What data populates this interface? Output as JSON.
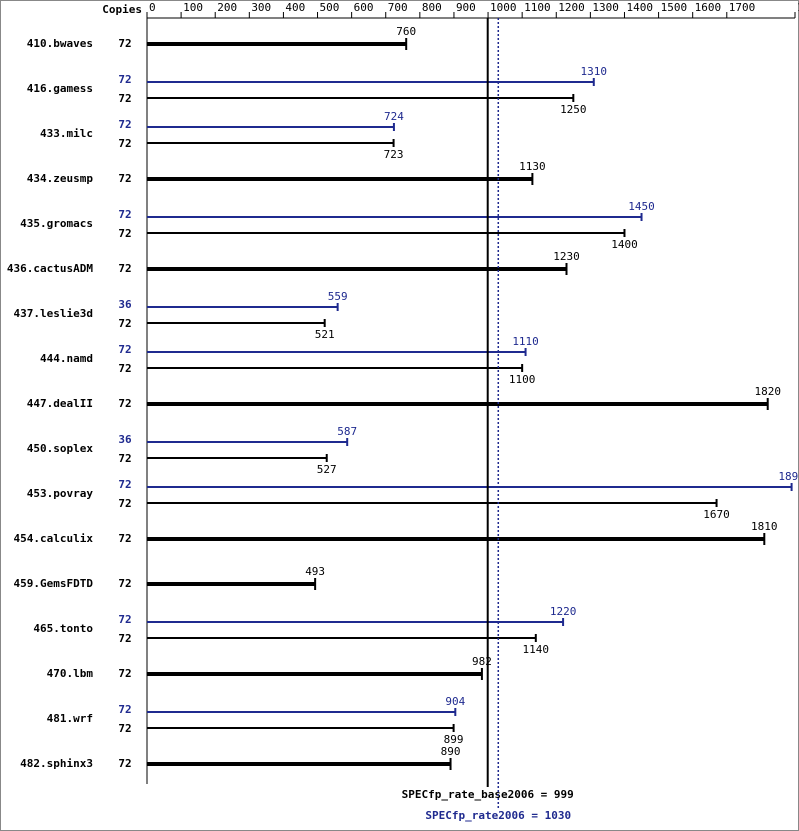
{
  "chart_data": {
    "type": "spec_bar",
    "copies_label": "Copies",
    "categories": [
      "410.bwaves",
      "416.gamess",
      "433.milc",
      "434.zeusmp",
      "435.gromacs",
      "436.cactusADM",
      "437.leslie3d",
      "444.namd",
      "447.dealII",
      "450.soplex",
      "453.povray",
      "454.calculix",
      "459.GemsFDTD",
      "465.tonto",
      "470.lbm",
      "481.wrf",
      "482.sphinx3"
    ],
    "series": [
      {
        "name": "base",
        "color": "#000000",
        "values": [
          760,
          1250,
          723,
          1130,
          1400,
          1230,
          521,
          1100,
          1820,
          527,
          1670,
          1810,
          493,
          1140,
          982,
          899,
          890
        ],
        "copies": [
          72,
          72,
          72,
          72,
          72,
          72,
          72,
          72,
          72,
          72,
          72,
          72,
          72,
          72,
          72,
          72,
          72
        ]
      },
      {
        "name": "peak",
        "color": "#1f2a8f",
        "values": [
          null,
          1310,
          724,
          null,
          1450,
          null,
          559,
          1110,
          null,
          587,
          1890,
          null,
          null,
          1220,
          null,
          904,
          null
        ],
        "copies": [
          null,
          72,
          72,
          null,
          72,
          null,
          36,
          72,
          null,
          36,
          72,
          null,
          null,
          72,
          null,
          72,
          null
        ]
      }
    ],
    "xlim": [
      0,
      1900
    ],
    "xticks": [
      0,
      100,
      200,
      300,
      400,
      500,
      600,
      700,
      800,
      900,
      1000,
      1100,
      1200,
      1300,
      1400,
      1500,
      1600,
      1700,
      1900
    ],
    "reference_lines": [
      {
        "label": "SPECfp_rate_base2006 = 999",
        "value": 999,
        "color": "#000000",
        "style": "solid"
      },
      {
        "label": "SPECfp_rate2006 = 1030",
        "value": 1030,
        "color": "#1f2a8f",
        "style": "dotted"
      }
    ]
  }
}
